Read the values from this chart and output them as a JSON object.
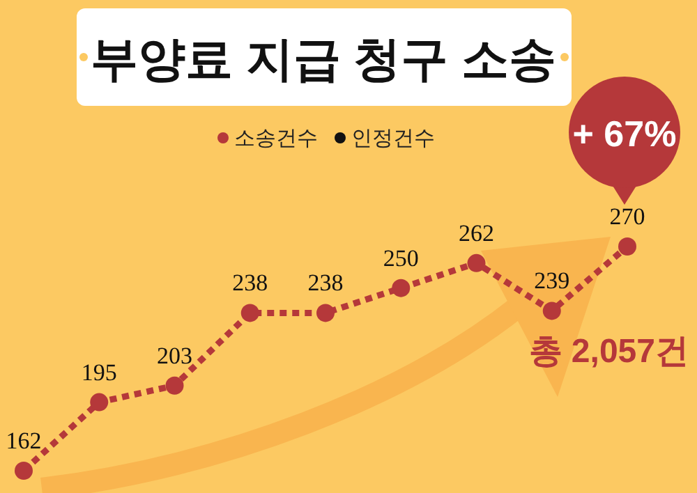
{
  "chart_data": {
    "type": "line",
    "title": "부양료 지급 청구 소송",
    "categories": [
      null,
      null,
      null,
      null,
      null,
      null,
      null,
      null,
      null
    ],
    "series": [
      {
        "name": "소송건수",
        "color": "#b5383a",
        "values": [
          162,
          195,
          203,
          238,
          238,
          250,
          262,
          239,
          270
        ]
      },
      {
        "name": "인정건수",
        "color": "#111111",
        "values": [
          null,
          null,
          null,
          null,
          null,
          null,
          null,
          null,
          null
        ]
      }
    ],
    "data_labels": true,
    "legend": "top",
    "marker": "circle",
    "line_style": "dotted",
    "annotations": [
      "+ 67%",
      "총 2,057건"
    ]
  }
}
